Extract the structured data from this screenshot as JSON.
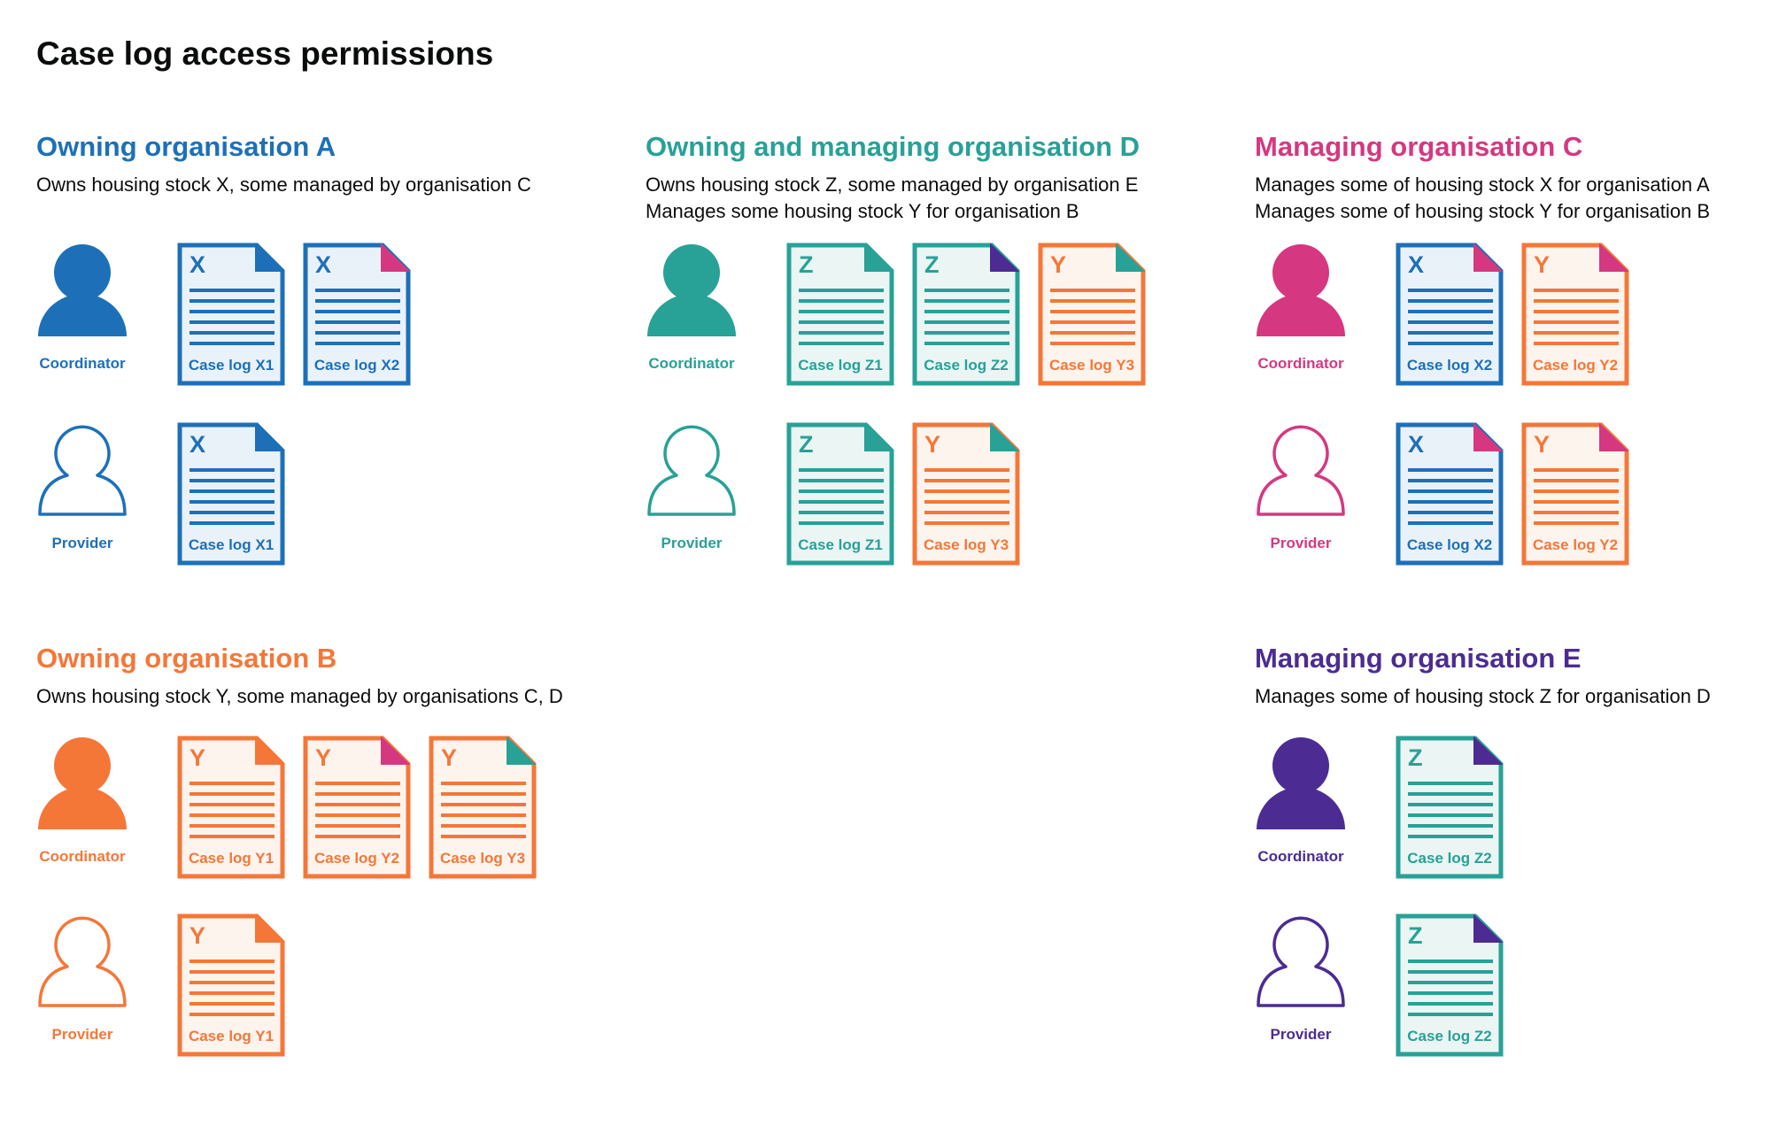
{
  "title": "Case log access permissions",
  "colors": {
    "blue": "#1d70b8",
    "teal": "#28a197",
    "pink": "#d53880",
    "orange": "#f47738",
    "purple": "#4c2c92"
  },
  "tints": {
    "blue": "#eaf2f9",
    "teal": "#eaf5f4",
    "pink": "#fbeef4",
    "orange": "#fef4ee",
    "purple": "#efecf5"
  },
  "sections": [
    {
      "heading": "Owning organisation A",
      "color": "blue",
      "desc": [
        "Owns housing stock X, some managed by organisation C"
      ],
      "roles": [
        {
          "name": "Coordinator",
          "icon": "person-filled-icon",
          "docs": [
            {
              "letter": "X",
              "label": "Case log X1",
              "color": "blue",
              "corner": "blue"
            },
            {
              "letter": "X",
              "label": "Case log X2",
              "color": "blue",
              "corner": "pink"
            }
          ]
        },
        {
          "name": "Provider",
          "icon": "person-outline-icon",
          "docs": [
            {
              "letter": "X",
              "label": "Case log X1",
              "color": "blue",
              "corner": "blue"
            }
          ]
        }
      ]
    },
    {
      "heading": "Owning and managing organisation D",
      "color": "teal",
      "desc": [
        "Owns housing stock Z, some managed by organisation E",
        "Manages some housing stock Y for organisation B"
      ],
      "roles": [
        {
          "name": "Coordinator",
          "icon": "person-filled-icon",
          "docs": [
            {
              "letter": "Z",
              "label": "Case log Z1",
              "color": "teal",
              "corner": "teal"
            },
            {
              "letter": "Z",
              "label": "Case log Z2",
              "color": "teal",
              "corner": "purple"
            },
            {
              "letter": "Y",
              "label": "Case log Y3",
              "color": "orange",
              "corner": "teal"
            }
          ]
        },
        {
          "name": "Provider",
          "icon": "person-outline-icon",
          "docs": [
            {
              "letter": "Z",
              "label": "Case log Z1",
              "color": "teal",
              "corner": "teal"
            },
            {
              "letter": "Y",
              "label": "Case log Y3",
              "color": "orange",
              "corner": "teal"
            }
          ]
        }
      ]
    },
    {
      "heading": "Managing organisation C",
      "color": "pink",
      "desc": [
        "Manages some of housing stock X for organisation A",
        "Manages some of housing stock Y for organisation B"
      ],
      "roles": [
        {
          "name": "Coordinator",
          "icon": "person-filled-icon",
          "docs": [
            {
              "letter": "X",
              "label": "Case log X2",
              "color": "blue",
              "corner": "pink"
            },
            {
              "letter": "Y",
              "label": "Case log Y2",
              "color": "orange",
              "corner": "pink"
            }
          ]
        },
        {
          "name": "Provider",
          "icon": "person-outline-icon",
          "docs": [
            {
              "letter": "X",
              "label": "Case log X2",
              "color": "blue",
              "corner": "pink"
            },
            {
              "letter": "Y",
              "label": "Case log Y2",
              "color": "orange",
              "corner": "pink"
            }
          ]
        }
      ]
    },
    {
      "heading": "Owning organisation B",
      "color": "orange",
      "desc": [
        "Owns housing stock Y, some managed by organisations C, D"
      ],
      "roles": [
        {
          "name": "Coordinator",
          "icon": "person-filled-icon",
          "docs": [
            {
              "letter": "Y",
              "label": "Case log Y1",
              "color": "orange",
              "corner": "orange"
            },
            {
              "letter": "Y",
              "label": "Case log Y2",
              "color": "orange",
              "corner": "pink"
            },
            {
              "letter": "Y",
              "label": "Case log Y3",
              "color": "orange",
              "corner": "teal"
            }
          ]
        },
        {
          "name": "Provider",
          "icon": "person-outline-icon",
          "docs": [
            {
              "letter": "Y",
              "label": "Case log Y1",
              "color": "orange",
              "corner": "orange"
            }
          ]
        }
      ]
    },
    {
      "heading": "Managing organisation E",
      "color": "purple",
      "desc": [
        "Manages some of housing stock Z for organisation D"
      ],
      "roles": [
        {
          "name": "Coordinator",
          "icon": "person-filled-icon",
          "docs": [
            {
              "letter": "Z",
              "label": "Case log Z2",
              "color": "teal",
              "corner": "purple"
            }
          ]
        },
        {
          "name": "Provider",
          "icon": "person-outline-icon",
          "docs": [
            {
              "letter": "Z",
              "label": "Case log Z2",
              "color": "teal",
              "corner": "purple"
            }
          ]
        }
      ]
    }
  ]
}
